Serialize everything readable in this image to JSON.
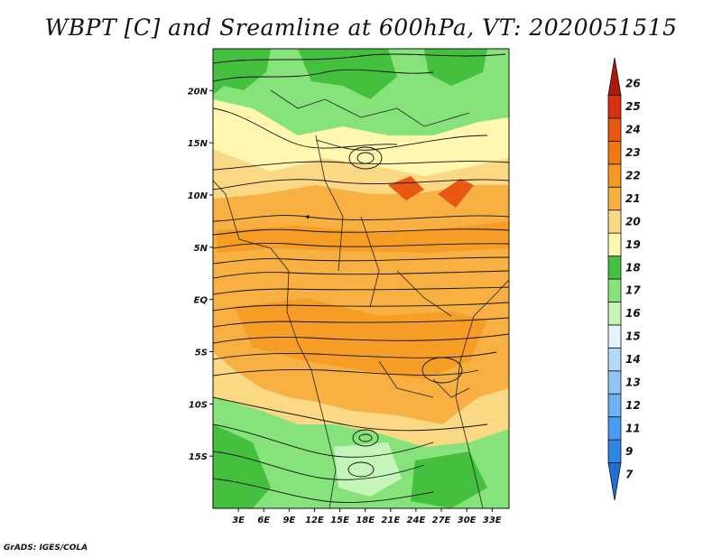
{
  "title": "WBPT [C] and Sreamline at 600hPa, VT: 2020051515",
  "credit": "GrADS: IGES/COLA",
  "map": {
    "lon_range": [
      0,
      35
    ],
    "lat_range": [
      -20,
      24
    ],
    "lat_ticks": [
      {
        "value": 20,
        "label": "20N"
      },
      {
        "value": 15,
        "label": "15N"
      },
      {
        "value": 10,
        "label": "10N"
      },
      {
        "value": 5,
        "label": "5N"
      },
      {
        "value": 0,
        "label": "EQ"
      },
      {
        "value": -5,
        "label": "5S"
      },
      {
        "value": -10,
        "label": "10S"
      },
      {
        "value": -15,
        "label": "15S"
      }
    ],
    "lon_ticks": [
      {
        "value": 3,
        "label": "3E"
      },
      {
        "value": 6,
        "label": "6E"
      },
      {
        "value": 9,
        "label": "9E"
      },
      {
        "value": 12,
        "label": "12E"
      },
      {
        "value": 15,
        "label": "15E"
      },
      {
        "value": 18,
        "label": "18E"
      },
      {
        "value": 21,
        "label": "21E"
      },
      {
        "value": 24,
        "label": "24E"
      },
      {
        "value": 27,
        "label": "27E"
      },
      {
        "value": 30,
        "label": "30E"
      },
      {
        "value": 33,
        "label": "33E"
      }
    ]
  },
  "colorbar": {
    "levels": [
      {
        "label": "7",
        "color": "#1e6fd8"
      },
      {
        "label": "9",
        "color": "#2f86e6"
      },
      {
        "label": "11",
        "color": "#4a9cf0"
      },
      {
        "label": "12",
        "color": "#6cb2f5"
      },
      {
        "label": "13",
        "color": "#8ec6f7"
      },
      {
        "label": "14",
        "color": "#b4dafa"
      },
      {
        "label": "15",
        "color": "#e4f4fc"
      },
      {
        "label": "16",
        "color": "#c5f5b8"
      },
      {
        "label": "17",
        "color": "#86e27a"
      },
      {
        "label": "18",
        "color": "#44c03e"
      },
      {
        "label": "19",
        "color": "#fff6b0"
      },
      {
        "label": "20",
        "color": "#fbd884"
      },
      {
        "label": "21",
        "color": "#f8b043"
      },
      {
        "label": "22",
        "color": "#f49a20"
      },
      {
        "label": "23",
        "color": "#f07a10"
      },
      {
        "label": "24",
        "color": "#e85812"
      },
      {
        "label": "25",
        "color": "#d83010"
      },
      {
        "label": "26",
        "color": "#b0180c"
      }
    ]
  }
}
